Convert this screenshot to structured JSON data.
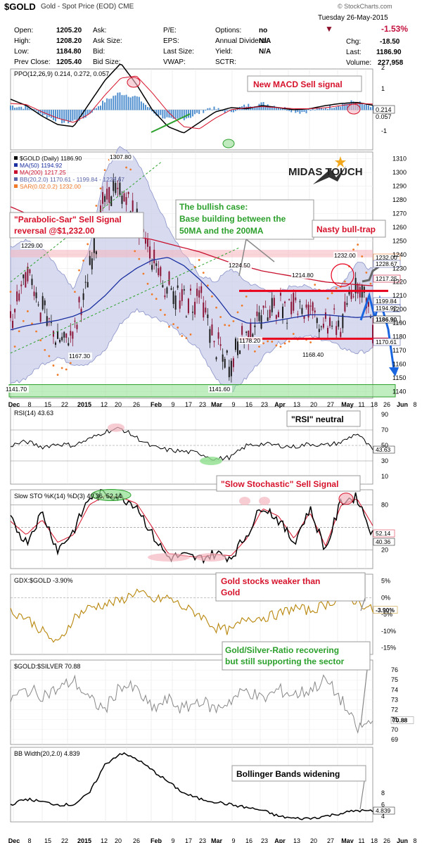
{
  "header": {
    "symbol": "$GOLD",
    "name": "Gold - Spot Price (EOD) CME",
    "source": "© StockCharts.com",
    "date": "Tuesday   26-May-2015",
    "pct_change": "-1.53%",
    "chg_label": "Chg:",
    "chg_value": "-18.50",
    "last_label": "Last:",
    "last_value": "1186.90",
    "volume_label": "Volume:",
    "volume_value": "227,958",
    "stats": [
      {
        "label": "Open:",
        "value": "1205.20"
      },
      {
        "label": "High:",
        "value": "1208.20"
      },
      {
        "label": "Low:",
        "value": "1184.80"
      },
      {
        "label": "Prev Close:",
        "value": "1205.40"
      }
    ],
    "stats2": [
      {
        "label": "Ask:",
        "value": ""
      },
      {
        "label": "Ask Size:",
        "value": ""
      },
      {
        "label": "Bid:",
        "value": ""
      },
      {
        "label": "Bid Size:",
        "value": ""
      }
    ],
    "stats3": [
      {
        "label": "P/E:",
        "value": ""
      },
      {
        "label": "EPS:",
        "value": ""
      },
      {
        "label": "Last Size:",
        "value": ""
      },
      {
        "label": "VWAP:",
        "value": ""
      }
    ],
    "stats4": [
      {
        "label": "Options:",
        "value": "no"
      },
      {
        "label": "Annual Dividend:",
        "value": "N/A"
      },
      {
        "label": "Yield:",
        "value": "N/A"
      },
      {
        "label": "SCTR:",
        "value": ""
      }
    ]
  },
  "x_axis": [
    "Dec",
    "8",
    "15",
    "22",
    "2015",
    "12",
    "20",
    "26",
    "Feb",
    "9",
    "17",
    "23",
    "Mar",
    "9",
    "16",
    "23",
    "Apr",
    "13",
    "20",
    "27",
    "May",
    "11",
    "18",
    "26",
    "Jun",
    "8"
  ],
  "panels": {
    "ppo": {
      "legend": "PPO(12,26,9) 0.214, 0.272, 0.057",
      "ticks": [
        "2",
        "1",
        "-1"
      ],
      "right_labels": [
        "0.214",
        "0.057"
      ]
    },
    "price": {
      "legend": [
        "$GOLD (Daily) 1186.90",
        "MA(50) 1194.92",
        "MA(200) 1217.25",
        "BB(20,2.0) 1170.61 - 1199.84 - 1228.67",
        "SAR(0.02,0.2) 1232.00"
      ],
      "ticks": [
        "1310",
        "1300",
        "1290",
        "1280",
        "1270",
        "1260",
        "1250",
        "1240",
        "1230",
        "1220",
        "1210",
        "1200",
        "1190",
        "1180",
        "1170",
        "1160",
        "1150",
        "1140"
      ],
      "right_labels": [
        "1232.00",
        "1228.67",
        "1217.25",
        "1199.84",
        "1194.92",
        "1186.90",
        "1170.61"
      ],
      "point_labels": [
        "1307.80",
        "1229.00",
        "1224.50",
        "1214.80",
        "1232.00",
        "1178.20",
        "1168.40",
        "1167.30",
        "1141.60",
        "1141.70"
      ]
    },
    "rsi": {
      "legend": "RSI(14) 43.63",
      "ticks": [
        "90",
        "70",
        "50",
        "30",
        "10"
      ],
      "right_label": "43.63"
    },
    "sto": {
      "legend": "Slow STO %K(14) %D(3) 40.36, 52.14",
      "ticks": [
        "80",
        "20"
      ],
      "right_labels": [
        "52.14",
        "40.36"
      ]
    },
    "gdx": {
      "legend": "GDX:$GOLD -3.90%",
      "ticks": [
        "5%",
        "0%",
        "-5%",
        "-10%",
        "-15%"
      ],
      "right_label": "-3.90%"
    },
    "ratio": {
      "legend": "$GOLD:$SILVER 70.88",
      "ticks": [
        "76",
        "75",
        "74",
        "73",
        "72",
        "71",
        "70",
        "69"
      ],
      "right_label": "70.88"
    },
    "bbw": {
      "legend": "BB Width(20,2.0) 4.839",
      "ticks": [
        "8",
        "6",
        "4"
      ],
      "right_label": "4.839"
    }
  },
  "annotations": {
    "macd": "New MACD Sell signal",
    "sar": "\"Parabolic-Sar\" Sell Signal reversal @$1,232.00",
    "bull_1": "The bullish case:",
    "bull_2": "Base building between the",
    "bull_3": "50MA and the 200MA",
    "trap": "Nasty bull-trap",
    "rsi": "\"RSI\" neutral",
    "sto": "\"Slow Stochastic\" Sell Signal",
    "gdx_1": "Gold stocks weaker than",
    "gdx_2": "Gold",
    "ratio_1": "Gold/Silver-Ratio recovering",
    "ratio_2": "but still supporting the sector",
    "bbw": "Bollinger Bands widening",
    "logo": "MIDAS TOUCH"
  },
  "chart_data": {
    "type": "line",
    "title": "$GOLD Gold - Spot Price (EOD) CME",
    "x": [
      "Dec",
      "8",
      "15",
      "22",
      "2015",
      "12",
      "20",
      "26",
      "Feb",
      "9",
      "17",
      "23",
      "Mar",
      "9",
      "16",
      "23",
      "Apr",
      "13",
      "20",
      "27",
      "May",
      "11",
      "18",
      "26"
    ],
    "series": [
      {
        "name": "$GOLD (Daily)",
        "values": [
          1190,
          1225,
          1200,
          1180,
          1185,
          1230,
          1280,
          1290,
          1265,
          1235,
          1215,
          1205,
          1210,
          1175,
          1160,
          1185,
          1200,
          1200,
          1205,
          1200,
          1185,
          1190,
          1225,
          1186.9
        ]
      },
      {
        "name": "MA(50)",
        "values": [
          1185,
          1188,
          1190,
          1192,
          1195,
          1200,
          1210,
          1222,
          1230,
          1236,
          1238,
          1232,
          1222,
          1210,
          1195,
          1190,
          1190,
          1192,
          1194,
          1196,
          1196,
          1195,
          1194,
          1194.92
        ]
      },
      {
        "name": "MA(200)",
        "values": [
          1275,
          1270,
          1266,
          1262,
          1258,
          1256,
          1255,
          1254,
          1253,
          1251,
          1248,
          1245,
          1242,
          1238,
          1234,
          1231,
          1228,
          1226,
          1224,
          1222,
          1220,
          1219,
          1218,
          1217.25
        ]
      },
      {
        "name": "BB(20,2.0) upper",
        "values": [
          1245,
          1250,
          1245,
          1230,
          1215,
          1245,
          1300,
          1320,
          1310,
          1285,
          1260,
          1240,
          1225,
          1220,
          1230,
          1220,
          1215,
          1212,
          1218,
          1216,
          1214,
          1218,
          1235,
          1228.67
        ]
      },
      {
        "name": "BB(20,2.0) lower",
        "values": [
          1145,
          1150,
          1160,
          1165,
          1160,
          1160,
          1170,
          1190,
          1200,
          1195,
          1190,
          1180,
          1170,
          1150,
          1140,
          1150,
          1165,
          1175,
          1180,
          1180,
          1178,
          1172,
          1168,
          1170.61
        ]
      }
    ],
    "ylim": [
      1135,
      1315
    ],
    "grid": true,
    "legend": "top-left",
    "levels": [
      1241.5,
      1213.5,
      1178.5,
      1142.5
    ]
  }
}
